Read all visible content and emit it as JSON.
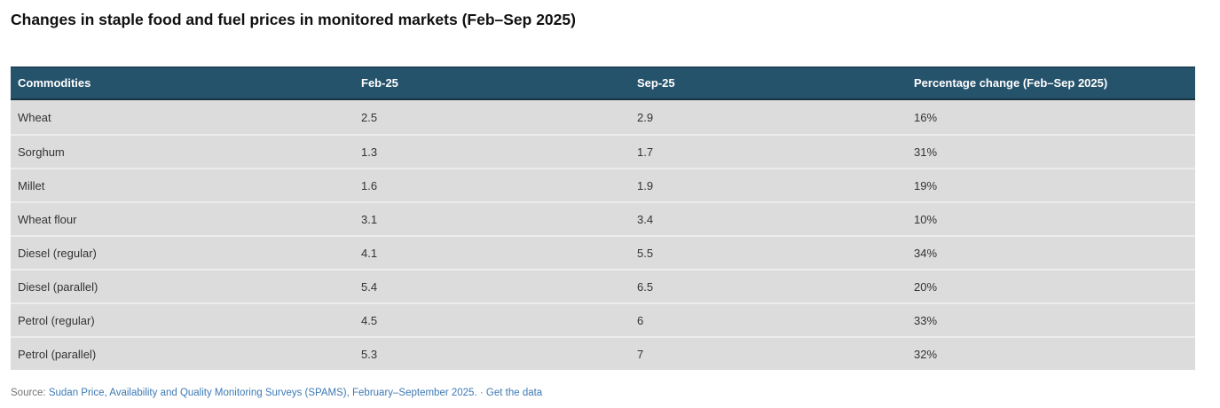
{
  "chart_data": {
    "type": "table",
    "title": "Changes in staple food and fuel prices in monitored markets (Feb–Sep 2025)",
    "columns": [
      "Commodities",
      "Feb-25",
      "Sep-25",
      "Percentage change (Feb–Sep 2025)"
    ],
    "rows": [
      [
        "Wheat",
        "2.5",
        "2.9",
        "16%"
      ],
      [
        "Sorghum",
        "1.3",
        "1.7",
        "31%"
      ],
      [
        "Millet",
        "1.6",
        "1.9",
        "19%"
      ],
      [
        "Wheat flour",
        "3.1",
        "3.4",
        "10%"
      ],
      [
        "Diesel (regular)",
        "4.1",
        "5.5",
        "34%"
      ],
      [
        "Diesel (parallel)",
        "5.4",
        "6.5",
        "20%"
      ],
      [
        "Petrol (regular)",
        "4.5",
        "6",
        "33%"
      ],
      [
        "Petrol (parallel)",
        "5.3",
        "7",
        "32%"
      ]
    ],
    "layout_hints": {
      "header_style": "dark-teal bar",
      "row_striping": "uniform light gray",
      "grid": "horizontal dividers only"
    }
  },
  "source": {
    "prefix": "Source:",
    "source_link_label": "Sudan Price, Availability and Quality Monitoring Surveys (SPAMS), February–September 2025.",
    "separator": "·",
    "get_data_label": "Get the data"
  },
  "colors": {
    "header_bg": "#26536c",
    "header_border": "#16313f",
    "row_bg": "#dcdcdc",
    "row_divider": "#ececec",
    "cell_text": "#333333",
    "link": "#3d7ab5",
    "muted_text": "#757575"
  }
}
